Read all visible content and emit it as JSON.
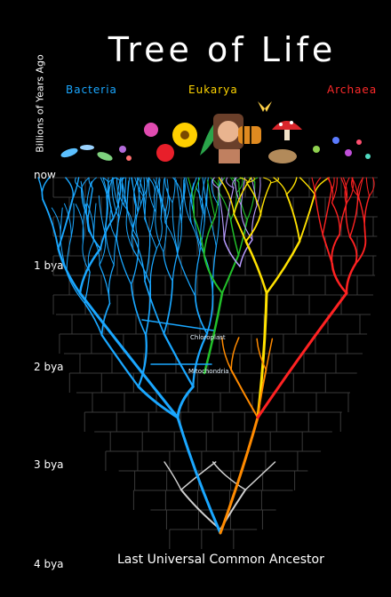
{
  "title": "Tree of Life",
  "axis_title": "Billions of Years Ago",
  "ticks": [
    "now",
    "1 bya",
    "2 bya",
    "3 bya",
    "4 bya"
  ],
  "domains": {
    "bacteria": {
      "label": "Bacteria",
      "color": "#1aa7ff"
    },
    "eukarya": {
      "label": "Eukarya",
      "color": "#ffd500"
    },
    "archaea": {
      "label": "Archaea",
      "color": "#ff2a2a"
    }
  },
  "annotations": {
    "chloroplast": "Chloroplast",
    "mitochondria": "Mitochondria"
  },
  "root_label": "Last Universal Common Ancestor",
  "colors": {
    "background": "#000000",
    "branch_bacteria": "#1aa7ff",
    "branch_green": "#22c02a",
    "branch_purple": "#b89bff",
    "branch_yellow": "#ffe100",
    "branch_orange": "#ff8a00",
    "branch_red": "#ff2222",
    "branch_root": "#cfcfcf"
  },
  "illustration_strip": [
    "microbe-icons",
    "flower-icon",
    "leaf-icon",
    "child-face-image",
    "tiger-icon",
    "mushroom-icon",
    "butterfly-icon",
    "microbe-icons"
  ]
}
